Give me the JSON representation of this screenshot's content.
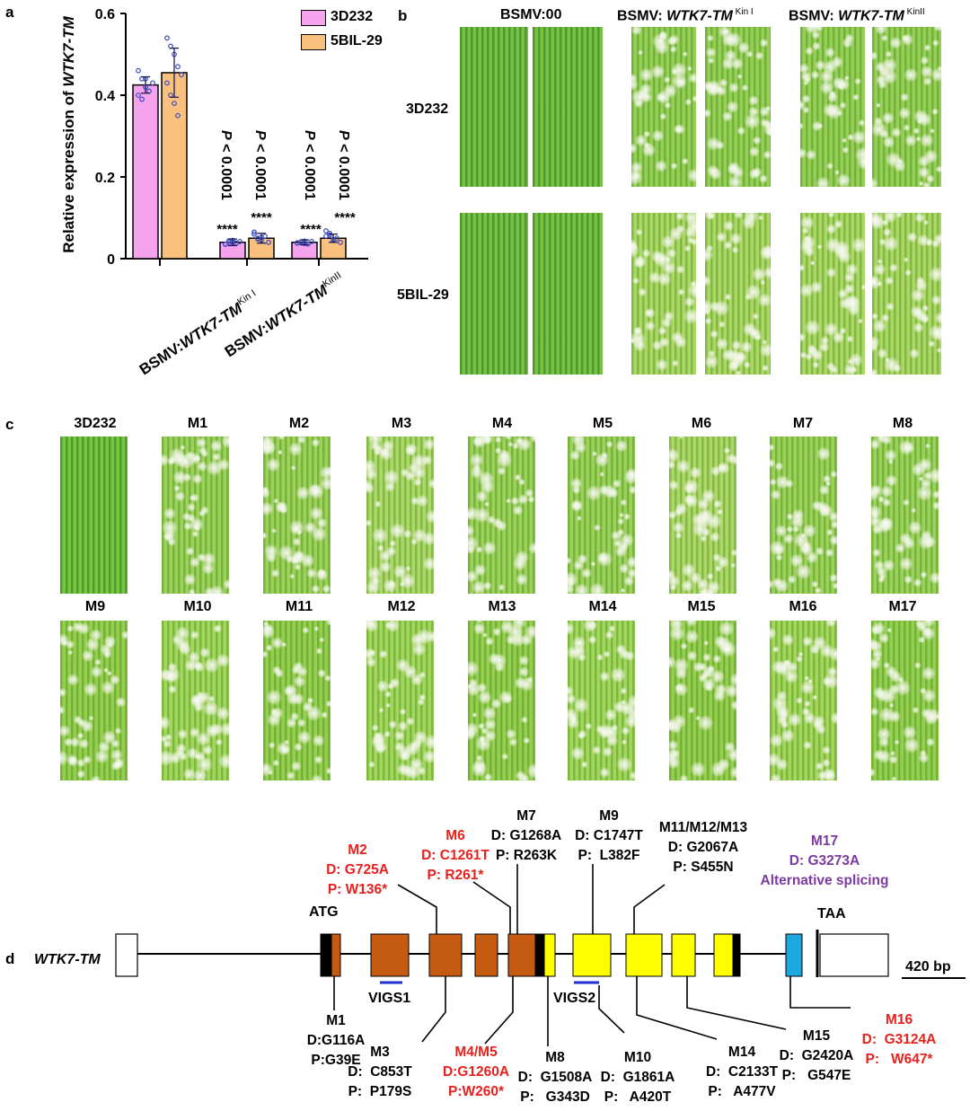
{
  "panels": {
    "a": "a",
    "b": "b",
    "c": "c",
    "d": "d"
  },
  "colors": {
    "bar_3d232": "#f5a3ec",
    "bar_5bil29": "#f9c07e",
    "point": "#3b4cc0",
    "red": "#e8211d",
    "purple": "#7b3aa0",
    "exon_brown": "#c55a11",
    "exon_yellow": "#ffff00",
    "exon_blue": "#1da9e0",
    "vigs_line": "#1f2fd0"
  },
  "chart_data": {
    "type": "bar",
    "ylabel": "Relative expression of WTK7-TM",
    "ylim": [
      0,
      0.6
    ],
    "yticks": [
      "0",
      "0.2",
      "0.4",
      "0.6"
    ],
    "legend_position": "top-right",
    "categories": [
      "",
      "BSMV:WTK7-TM Kin I",
      "BSMV:WTK7-TM KinII"
    ],
    "category_labels": [
      {
        "prefix": "BSMV:",
        "gene": "WTK7-TM",
        "sup": "Kin I"
      },
      {
        "prefix": "BSMV:",
        "gene": "WTK7-TM",
        "sup": "KinII"
      }
    ],
    "series": [
      {
        "name": "3D232",
        "values": [
          0.425,
          0.04,
          0.04
        ],
        "errors": [
          0.02,
          0.008,
          0.006
        ],
        "points": [
          [
            0.46,
            0.44,
            0.42,
            0.41,
            0.43,
            0.4,
            0.39,
            0.44
          ],
          [
            0.035,
            0.04,
            0.045,
            0.038,
            0.042,
            0.036,
            0.044,
            0.04
          ],
          [
            0.038,
            0.04,
            0.043,
            0.036,
            0.042,
            0.039,
            0.041,
            0.037
          ]
        ]
      },
      {
        "name": "5BIL-29",
        "values": [
          0.455,
          0.05,
          0.05
        ],
        "errors": [
          0.06,
          0.012,
          0.01
        ],
        "points": [
          [
            0.54,
            0.52,
            0.5,
            0.47,
            0.45,
            0.43,
            0.4,
            0.38,
            0.35
          ],
          [
            0.065,
            0.05,
            0.045,
            0.055,
            0.04,
            0.06,
            0.048,
            0.052
          ],
          [
            0.068,
            0.058,
            0.045,
            0.05,
            0.04,
            0.055,
            0.062,
            0.047
          ]
        ]
      }
    ],
    "annotations": [
      {
        "p": "P < 0.0001",
        "stars": "****"
      },
      {
        "p": "P < 0.0001",
        "stars": "****"
      },
      {
        "p": "P < 0.0001",
        "stars": "****"
      },
      {
        "p": "P < 0.0001",
        "stars": "****"
      }
    ]
  },
  "panel_b": {
    "col_headers": [
      {
        "prefix": "BSMV:00",
        "gene": "",
        "sup": ""
      },
      {
        "prefix": "BSMV: ",
        "gene": "WTK7-TM",
        "sup": "Kin I"
      },
      {
        "prefix": "BSMV: ",
        "gene": "WTK7-TM",
        "sup": "KinII"
      }
    ],
    "row_labels": [
      "3D232",
      "5BIL-29"
    ]
  },
  "panel_c": {
    "row1": [
      "3D232",
      "M1",
      "M2",
      "M3",
      "M4",
      "M5",
      "M6",
      "M7",
      "M8"
    ],
    "row2": [
      "M9",
      "M10",
      "M11",
      "M12",
      "M13",
      "M14",
      "M15",
      "M16",
      "M17"
    ]
  },
  "panel_d": {
    "gene_name": "WTK7-TM",
    "start": "ATG",
    "stop": "TAA",
    "scale": "420 bp",
    "vigs": [
      "VIGS1",
      "VIGS2"
    ],
    "mutations_top": [
      {
        "name": "M2",
        "d": "D: G725A",
        "p": "P: W136*",
        "color": "red"
      },
      {
        "name": "M6",
        "d": "D: C1261T",
        "p": "P: R261*",
        "color": "red"
      },
      {
        "name": "M7",
        "d": "D: G1268A",
        "p": "P: R263K",
        "color": "black"
      },
      {
        "name": "M9",
        "d": "D: C1747T",
        "p": "P:  L382F",
        "color": "black"
      },
      {
        "name": "M11/M12/M13",
        "d": "D: G2067A",
        "p": "P: S455N",
        "color": "black"
      },
      {
        "name": "M17",
        "d": "D: G3273A",
        "p": "Alternative splicing",
        "color": "purple"
      }
    ],
    "mutations_bottom": [
      {
        "name": "M1",
        "d": "D:G116A",
        "p": "P:G39E",
        "color": "black"
      },
      {
        "name": "M3",
        "d": "D:  C853T",
        "p": "P:  P179S",
        "color": "black"
      },
      {
        "name": "M4/M5",
        "d": "D:G1260A",
        "p": "P:W260*",
        "color": "red"
      },
      {
        "name": "M8",
        "d": "D:  G1508A",
        "p": "P:   G343D",
        "color": "black"
      },
      {
        "name": "M10",
        "d": "D:  G1861A",
        "p": "P:   A420T",
        "color": "black"
      },
      {
        "name": "M14",
        "d": "D:  C2133T",
        "p": "P:   A477V",
        "color": "black"
      },
      {
        "name": "M15",
        "d": "D:  G2420A",
        "p": "P:   G547E",
        "color": "black"
      },
      {
        "name": "M16",
        "d": "D:  G3124A",
        "p": "P:   W647*",
        "color": "red"
      }
    ]
  }
}
